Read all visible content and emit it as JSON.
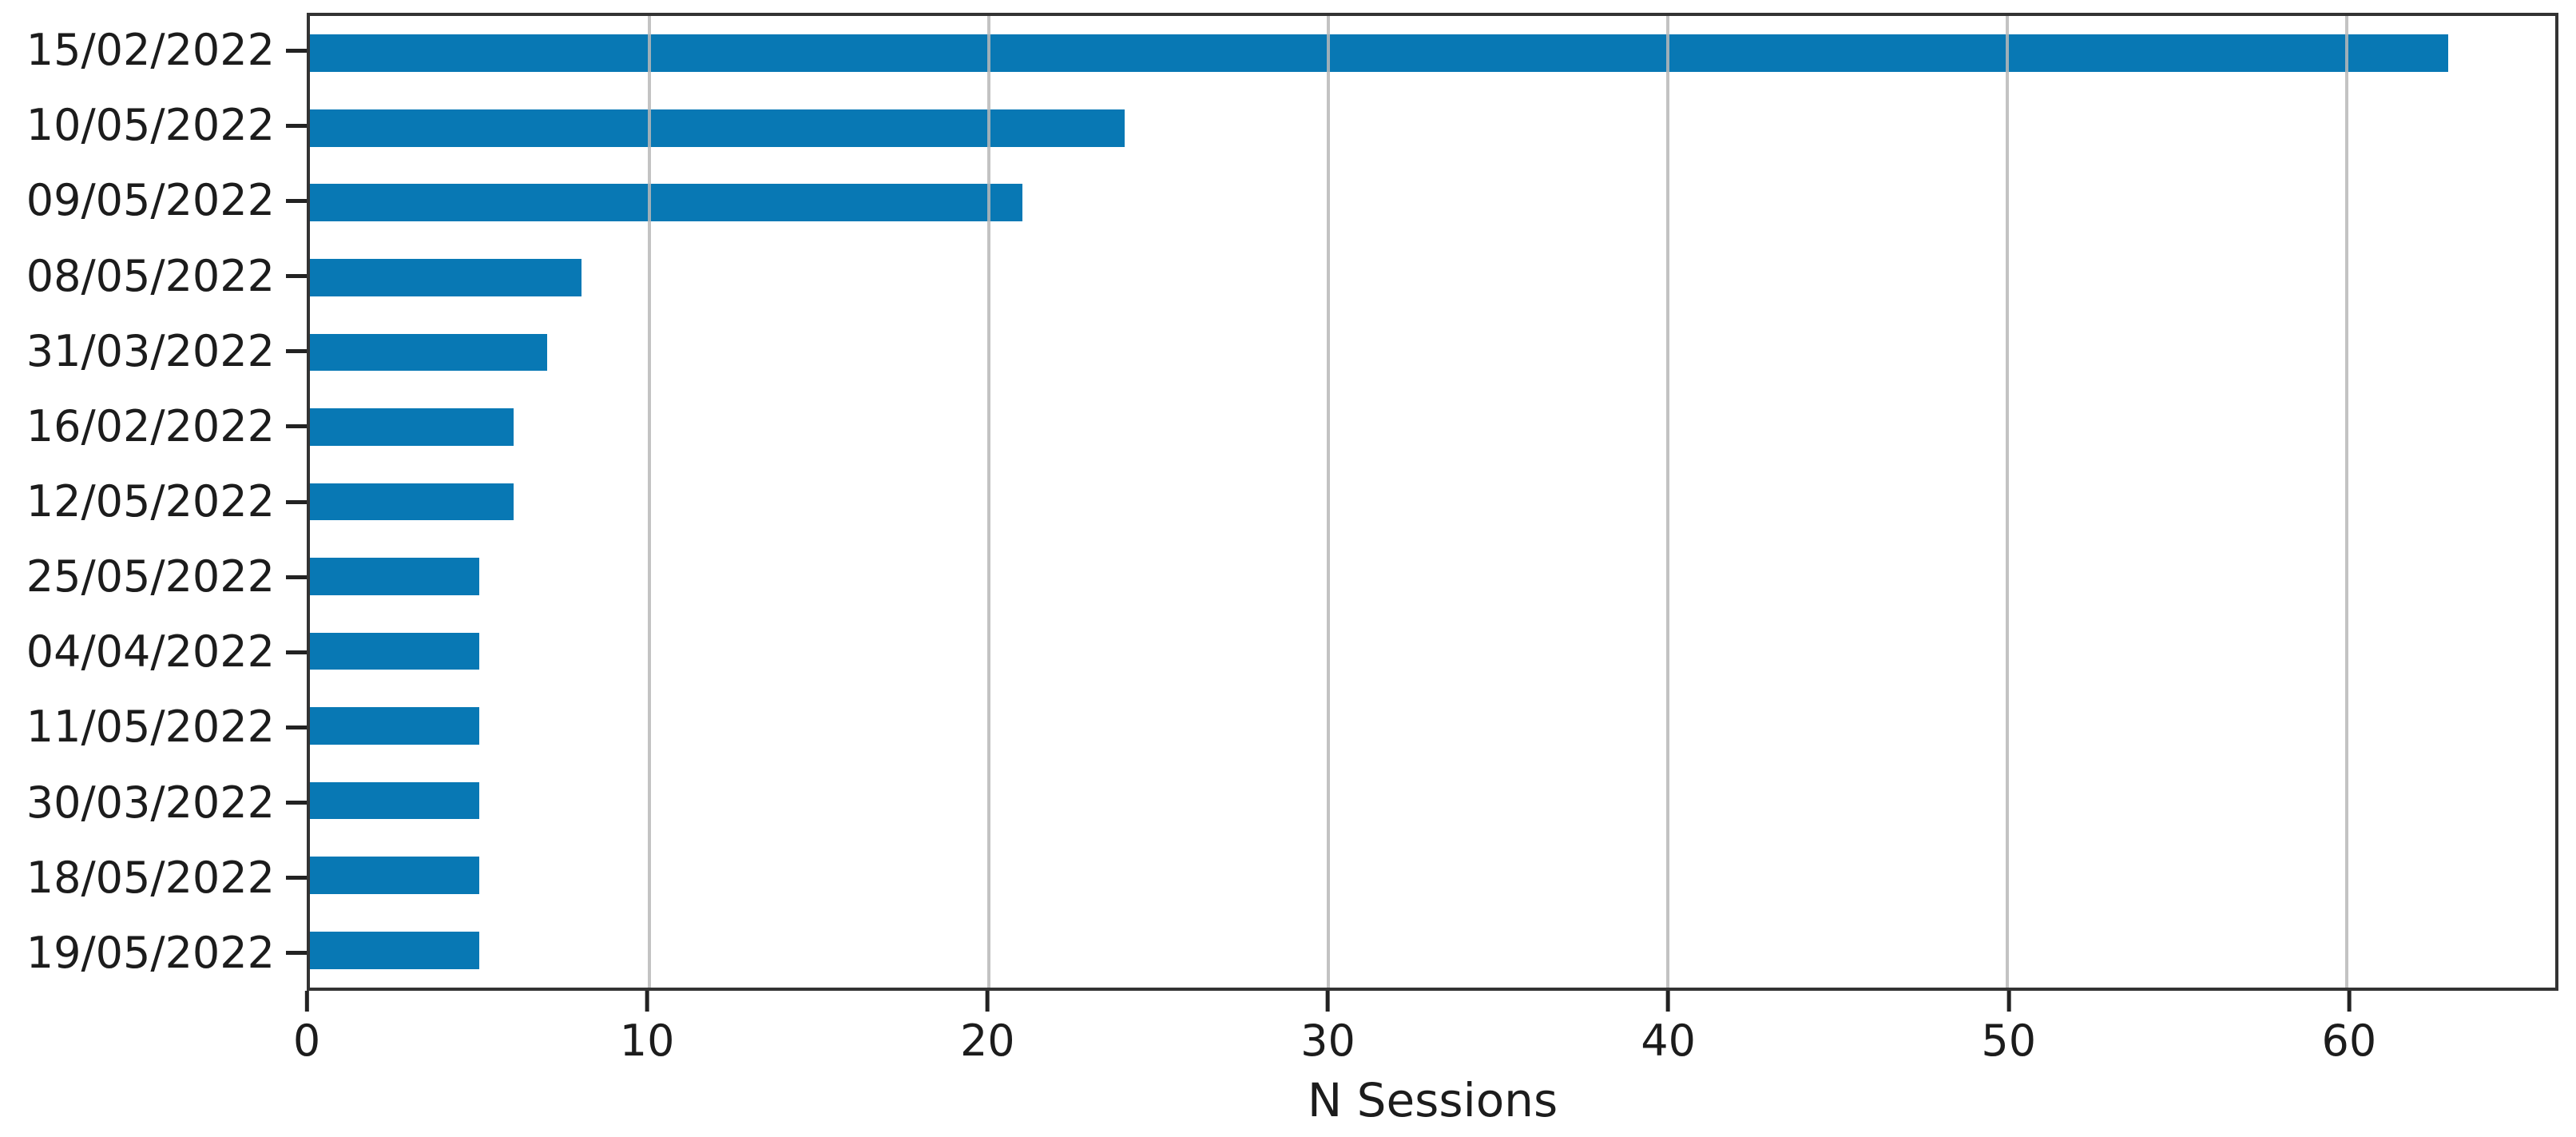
{
  "chart_data": {
    "type": "bar",
    "orientation": "horizontal",
    "title": "",
    "xlabel": "N Sessions",
    "ylabel": "",
    "categories": [
      "15/02/2022",
      "10/05/2022",
      "09/05/2022",
      "08/05/2022",
      "31/03/2022",
      "16/02/2022",
      "12/05/2022",
      "25/05/2022",
      "04/04/2022",
      "11/05/2022",
      "30/03/2022",
      "18/05/2022",
      "19/05/2022"
    ],
    "values": [
      63,
      24,
      21,
      8,
      7,
      6,
      6,
      5,
      5,
      5,
      5,
      5,
      5
    ],
    "xticks": [
      0,
      10,
      20,
      30,
      40,
      50,
      60
    ],
    "xlim": [
      0,
      66.15
    ],
    "grid": "vertical-gridlines-over-bars",
    "legend": "none"
  },
  "colors": {
    "bar": "#0878b4",
    "grid": "#b9b9b9",
    "spine": "#333333",
    "text": "#1c1c1c",
    "background": "#ffffff"
  }
}
